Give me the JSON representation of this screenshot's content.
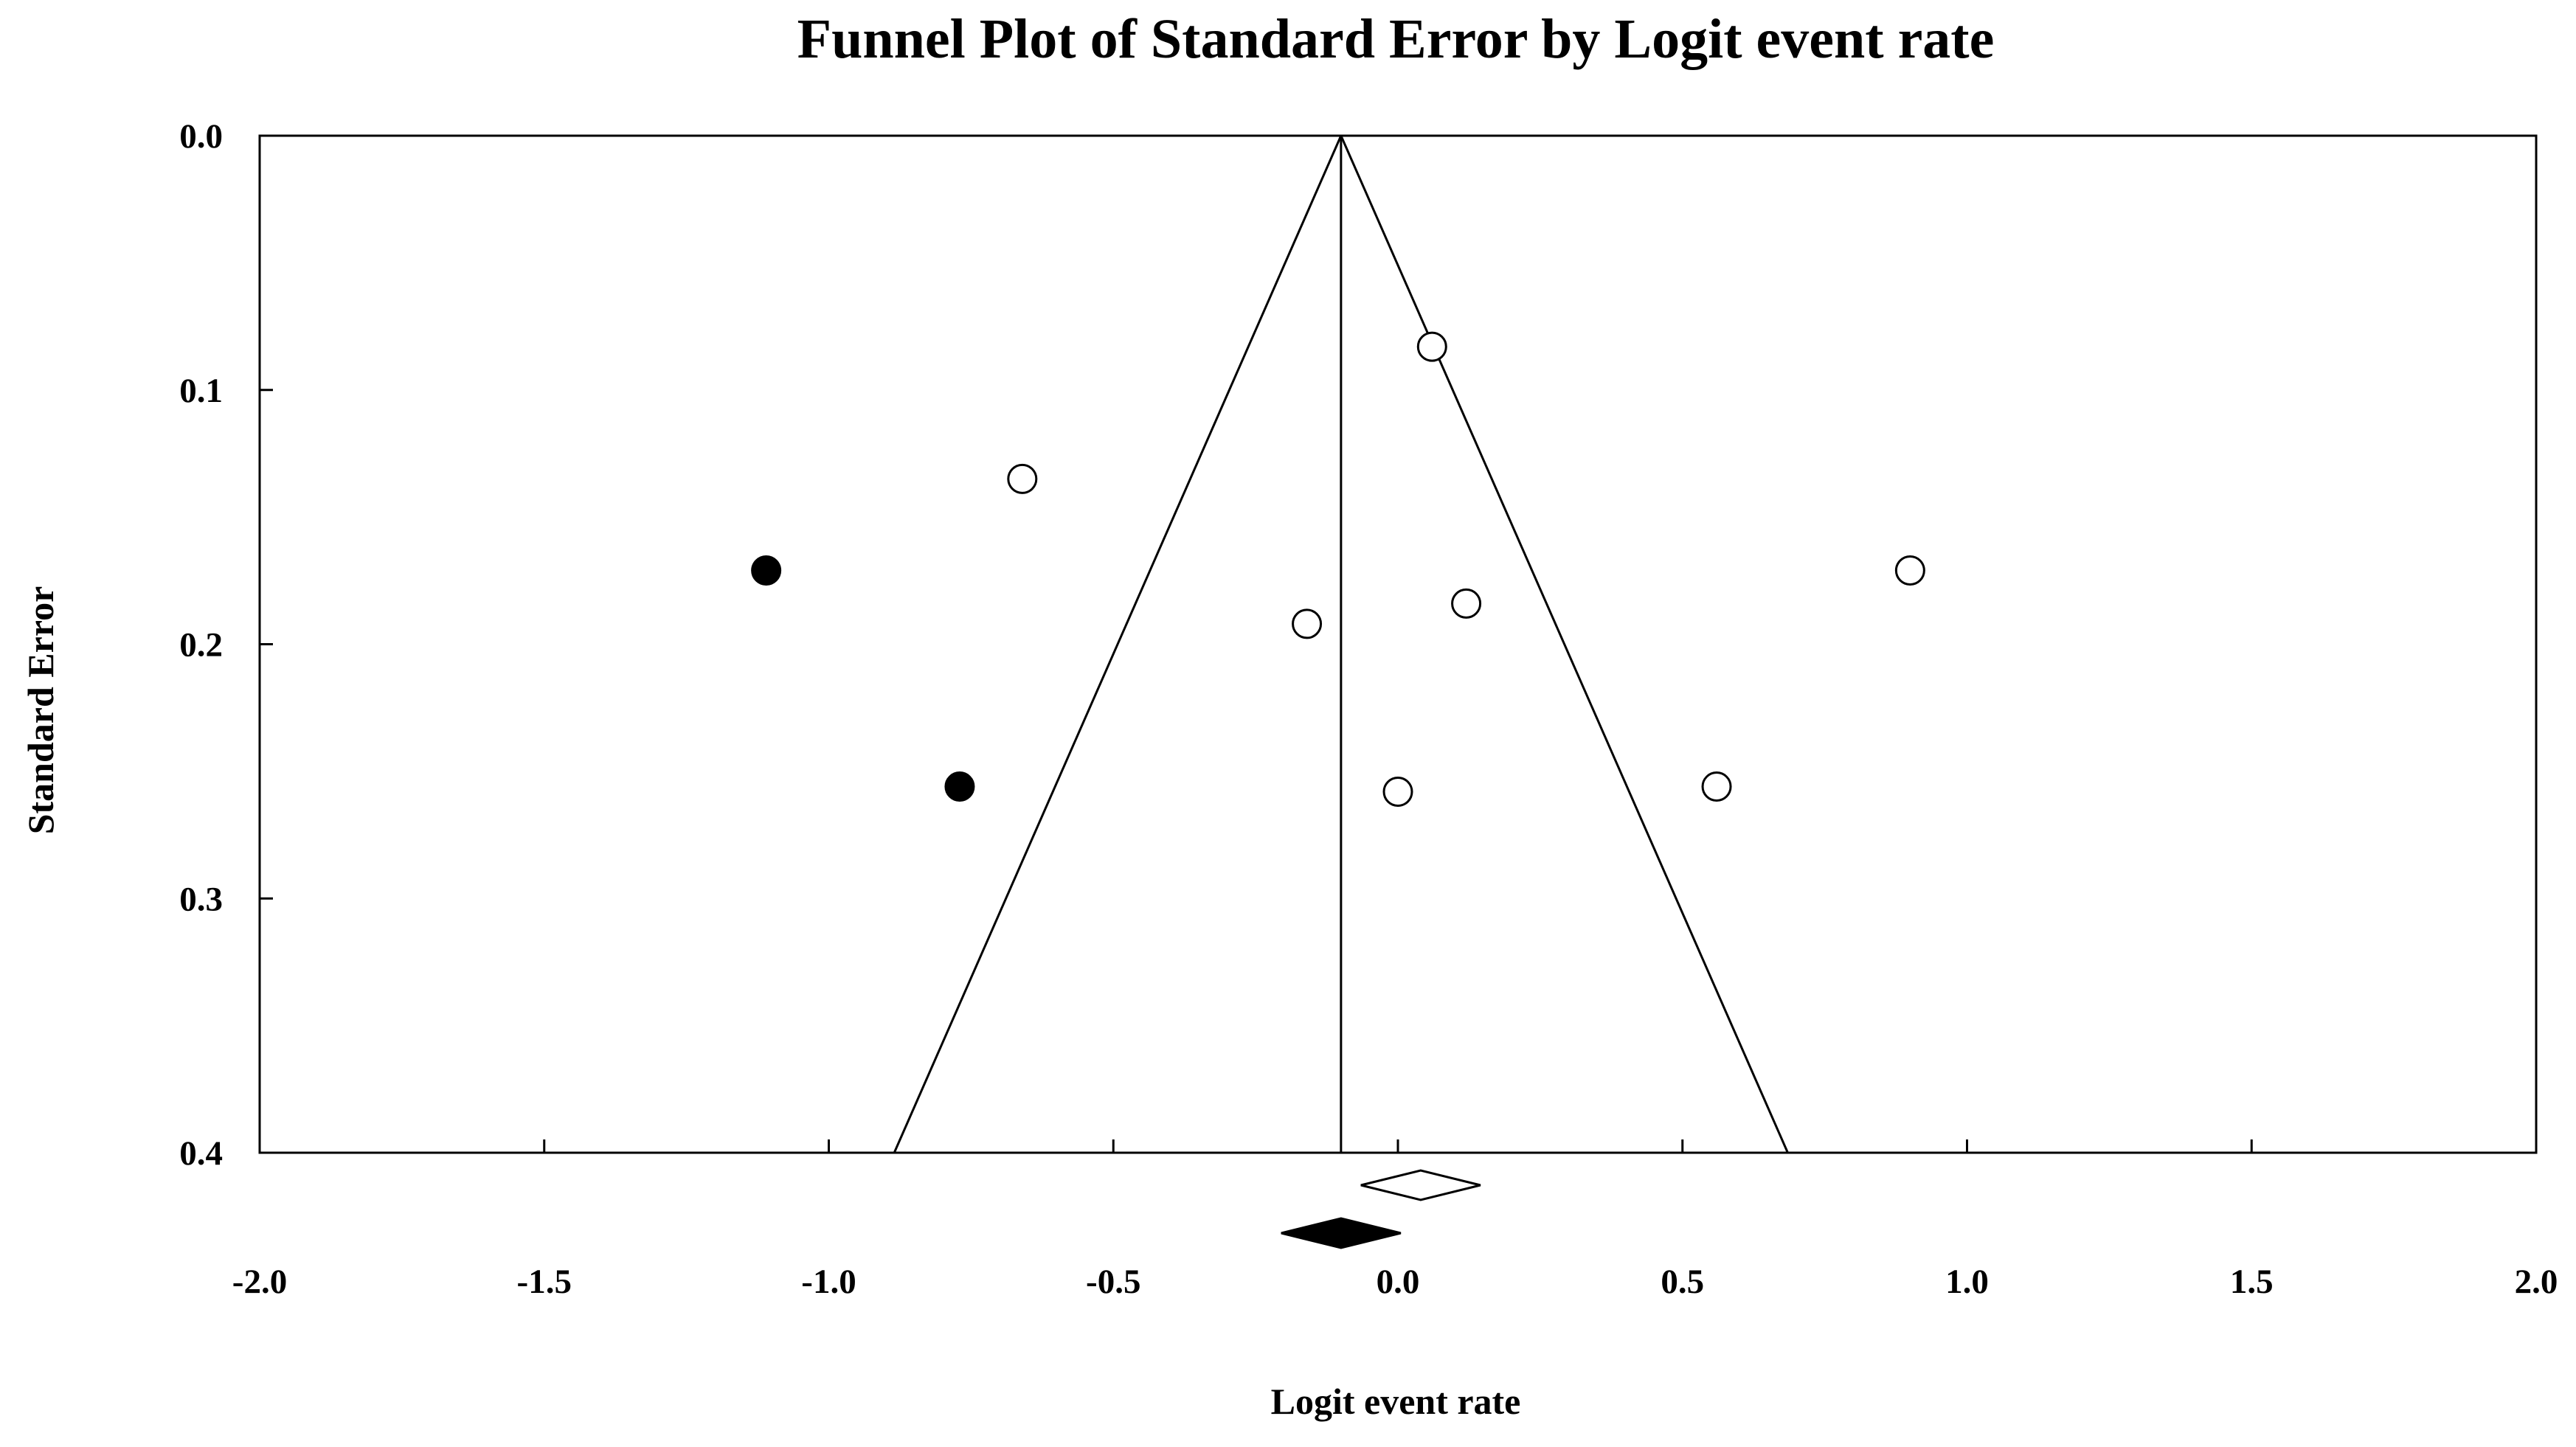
{
  "chart_data": {
    "type": "scatter",
    "title": "Funnel Plot of Standard Error by Logit event rate",
    "xlabel": "Logit event rate",
    "ylabel": "Standard Error",
    "xlim": [
      -2.0,
      2.0
    ],
    "ylim": [
      0.0,
      0.4
    ],
    "y_inverted": true,
    "x_ticks": [
      "-2.0",
      "-1.5",
      "-1.0",
      "-0.5",
      "0.0",
      "0.5",
      "1.0",
      "1.5",
      "2.0"
    ],
    "y_ticks": [
      "0.0",
      "0.1",
      "0.2",
      "0.3",
      "0.4"
    ],
    "grid": false,
    "legend": "none",
    "funnel": {
      "center": -0.1,
      "se_max": 0.4,
      "left_at_se_max": -0.885,
      "right_at_se_max": 0.685
    },
    "series": [
      {
        "marker": "open-circle",
        "points": [
          {
            "x": 0.06,
            "y": 0.083
          },
          {
            "x": -0.66,
            "y": 0.135
          },
          {
            "x": -0.16,
            "y": 0.192
          },
          {
            "x": 0.12,
            "y": 0.184
          },
          {
            "x": 0.9,
            "y": 0.171
          },
          {
            "x": 0.0,
            "y": 0.258
          },
          {
            "x": 0.56,
            "y": 0.256
          }
        ]
      },
      {
        "marker": "filled-circle",
        "points": [
          {
            "x": -1.11,
            "y": 0.171
          },
          {
            "x": -0.77,
            "y": 0.256
          }
        ]
      }
    ],
    "summary_diamonds": [
      {
        "style": "open",
        "center": 0.04,
        "half_width": 0.105
      },
      {
        "style": "filled",
        "center": -0.1,
        "half_width": 0.105
      }
    ],
    "colors": {
      "ink": "#000000",
      "background": "#ffffff"
    }
  }
}
